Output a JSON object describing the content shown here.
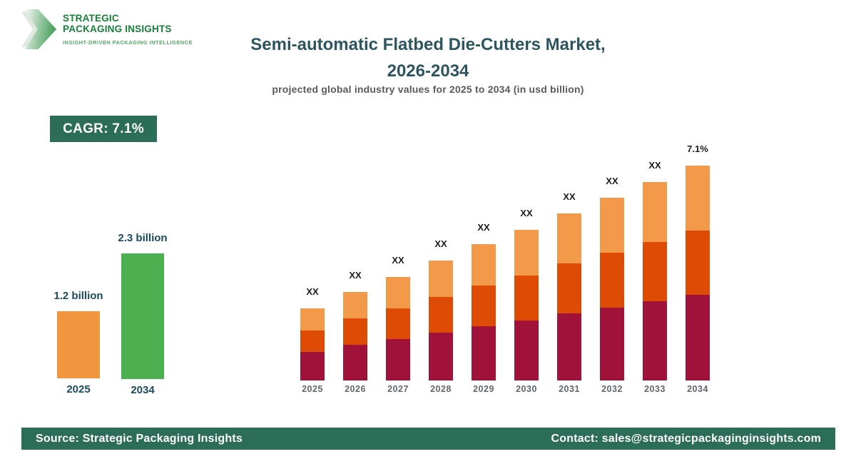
{
  "brand": {
    "name_line1": "STRATEGIC",
    "name_line2": "PACKAGING INSIGHTS",
    "tagline": "INSIGHT-DRIVEN PACKAGING INTELLIGENCE",
    "name_color": "#158038",
    "tagline_color": "#53A863"
  },
  "header": {
    "title_line1": "Semi-automatic Flatbed Die-Cutters Market,",
    "title_line2": "2026-2034",
    "subtitle": "projected global industry values for 2025 to 2034 (in usd billion)",
    "title_color": "#2D5560"
  },
  "cagr_badge": {
    "label": "CAGR: 7.1%",
    "bg_color": "#2C6D58"
  },
  "footer": {
    "source": "Source: Strategic Packaging Insights",
    "contact": "Contact: sales@strategicpackaginginsights.com",
    "bg_color": "#2C6D58"
  },
  "chart_data": [
    {
      "type": "bar",
      "name": "market-size-highlight",
      "unit": "usd billion",
      "categories": [
        "2025",
        "2034"
      ],
      "values": [
        1.2,
        2.3
      ],
      "value_labels": [
        "1.2 billion",
        "2.3 billion"
      ],
      "colors": [
        "#F0963F",
        "#4CAF50"
      ],
      "label_color": "#1B4A60"
    },
    {
      "type": "bar",
      "name": "projected-values-by-year",
      "stacked": true,
      "categories": [
        "2025",
        "2026",
        "2027",
        "2028",
        "2029",
        "2030",
        "2031",
        "2032",
        "2033",
        "2034"
      ],
      "bar_value_labels": [
        "XX",
        "XX",
        "XX",
        "XX",
        "XX",
        "XX",
        "XX",
        "XX",
        "XX",
        "7.1%"
      ],
      "series": [
        {
          "name": "segment-bottom",
          "color": "#A1123A",
          "values": [
            40,
            50,
            58,
            67,
            76,
            84,
            94,
            102,
            111,
            120
          ]
        },
        {
          "name": "segment-middle",
          "color": "#DE4B04",
          "values": [
            30,
            37,
            43,
            50,
            57,
            63,
            70,
            77,
            83,
            90
          ]
        },
        {
          "name": "segment-top",
          "color": "#F2994A",
          "values": [
            31,
            37,
            44,
            51,
            58,
            64,
            70,
            77,
            84,
            91
          ]
        }
      ],
      "axis_label_color": "#63666C",
      "grid": false,
      "legend": false
    }
  ]
}
